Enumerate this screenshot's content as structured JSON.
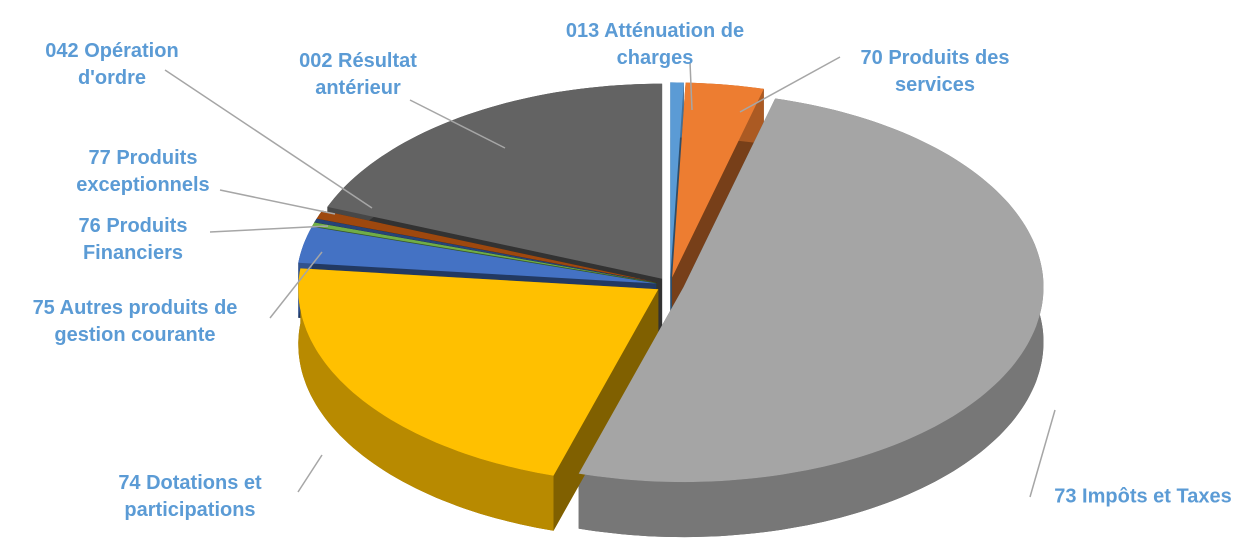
{
  "chart_data": {
    "type": "pie",
    "categories": [
      "013 Atténuation de charges",
      "70 Produits des services",
      "73 Impôts et Taxes",
      "74 Dotations et participations",
      "75 Autres produits de gestion courante",
      "76 Produits Financiers",
      "77 Produits exceptionnels",
      "042 Opération d'ordre",
      "002 Résultat antérieur"
    ],
    "values": [
      0.6,
      3.5,
      50.6,
      22,
      3,
      0.3,
      0.3,
      0.7,
      19
    ],
    "colors": [
      "#5B9BD5",
      "#ED7D31",
      "#A5A5A5",
      "#FFC000",
      "#4472C4",
      "#70AD47",
      "#264478",
      "#9E480E",
      "#636363"
    ],
    "label_color": "#5B9BD5"
  }
}
